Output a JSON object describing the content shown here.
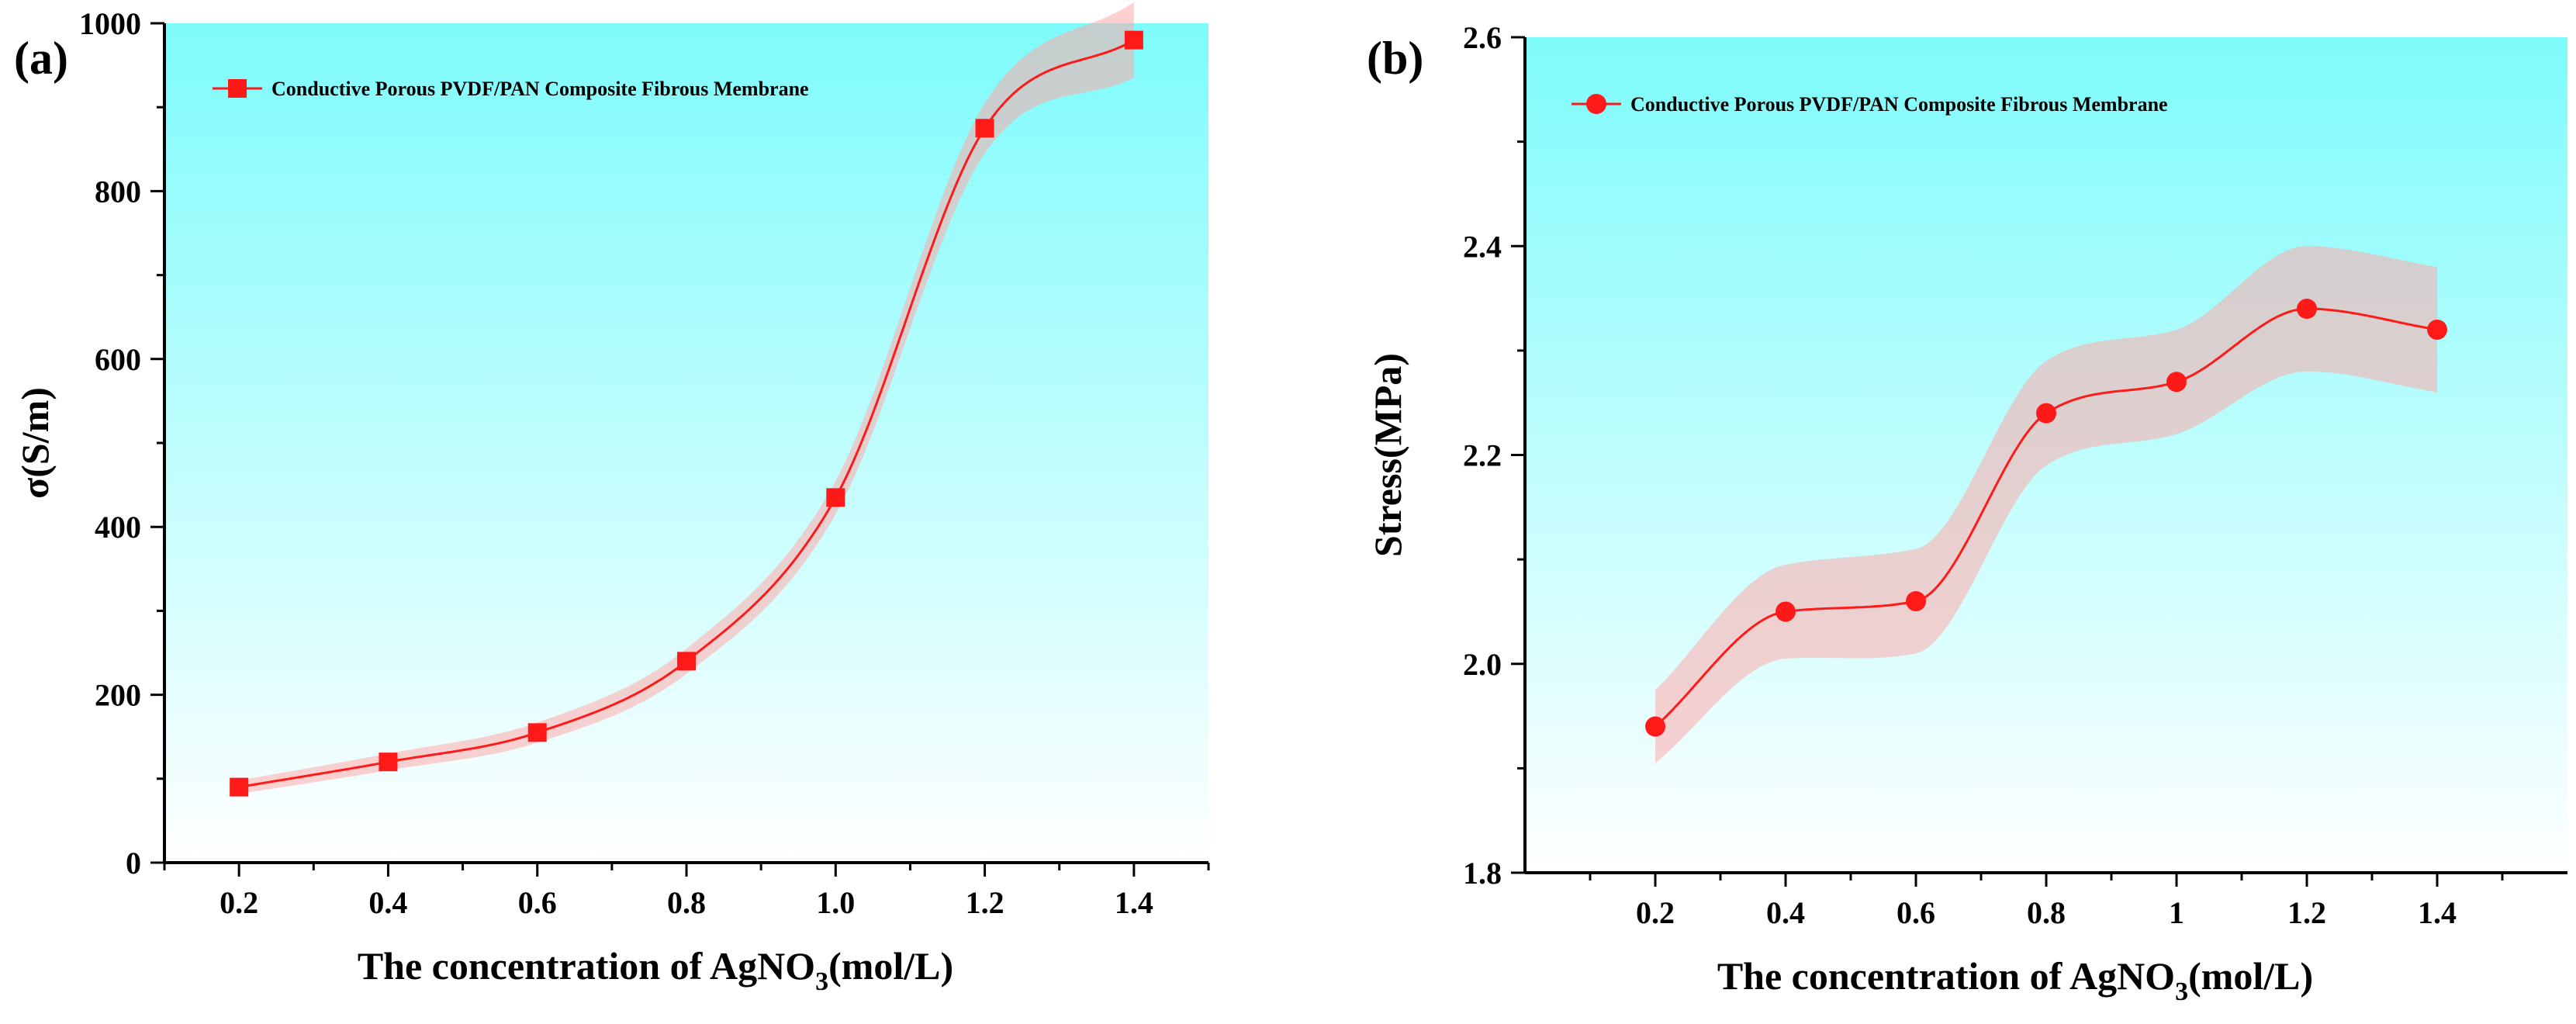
{
  "chart_data": [
    {
      "panel_label": "(a)",
      "type": "line",
      "marker": "square",
      "legend": "Conductive Porous PVDF/PAN Composite Fibrous Membrane",
      "legend_position": "top-left",
      "xlabel_main": "The concentration of AgNO",
      "xlabel_sub": "3",
      "xlabel_tail": "(mol/L)",
      "ylabel": "σ(S/m)",
      "xlim": [
        0.1,
        1.5
      ],
      "ylim": [
        0,
        1000
      ],
      "xticks": [
        "0.2",
        "0.4",
        "0.6",
        "0.8",
        "1.0",
        "1.2",
        "1.4"
      ],
      "yticks": [
        "0",
        "200",
        "400",
        "600",
        "800",
        "1000"
      ],
      "series": [
        {
          "name": "Conductive Porous PVDF/PAN Composite Fibrous Membrane",
          "x": [
            0.2,
            0.4,
            0.6,
            0.8,
            1.0,
            1.2,
            1.4
          ],
          "y": [
            90,
            120,
            155,
            240,
            435,
            875,
            980
          ],
          "band_halfwidth": [
            8,
            10,
            12,
            15,
            20,
            30,
            45
          ]
        }
      ],
      "colors": {
        "line": "#ff1a1a",
        "band": "#ffaaaa",
        "bg_top": "#7efbfb",
        "bg_bottom": "#ffffff"
      }
    },
    {
      "panel_label": "(b)",
      "type": "line",
      "marker": "circle",
      "legend": "Conductive Porous PVDF/PAN Composite Fibrous Membrane",
      "legend_position": "top-left",
      "xlabel_main": "The concentration of AgNO",
      "xlabel_sub": "3",
      "xlabel_tail": "(mol/L)",
      "ylabel": "Stress(MPa)",
      "xlim": [
        0.0,
        1.6
      ],
      "ylim": [
        1.8,
        2.6
      ],
      "xticks": [
        "0.2",
        "0.4",
        "0.6",
        "0.8",
        "1",
        "1.2",
        "1.4"
      ],
      "yticks": [
        "1.8",
        "2.0",
        "2.2",
        "2.4",
        "2.6"
      ],
      "series": [
        {
          "name": "Conductive Porous PVDF/PAN Composite Fibrous Membrane",
          "x": [
            0.2,
            0.4,
            0.6,
            0.8,
            1.0,
            1.2,
            1.4
          ],
          "y": [
            1.94,
            2.05,
            2.06,
            2.24,
            2.27,
            2.34,
            2.32
          ],
          "band_halfwidth": [
            0.035,
            0.045,
            0.05,
            0.05,
            0.05,
            0.06,
            0.06
          ]
        }
      ],
      "colors": {
        "line": "#ff1a1a",
        "band": "#ffaaaa",
        "bg_top": "#7efbfb",
        "bg_bottom": "#ffffff"
      }
    }
  ]
}
